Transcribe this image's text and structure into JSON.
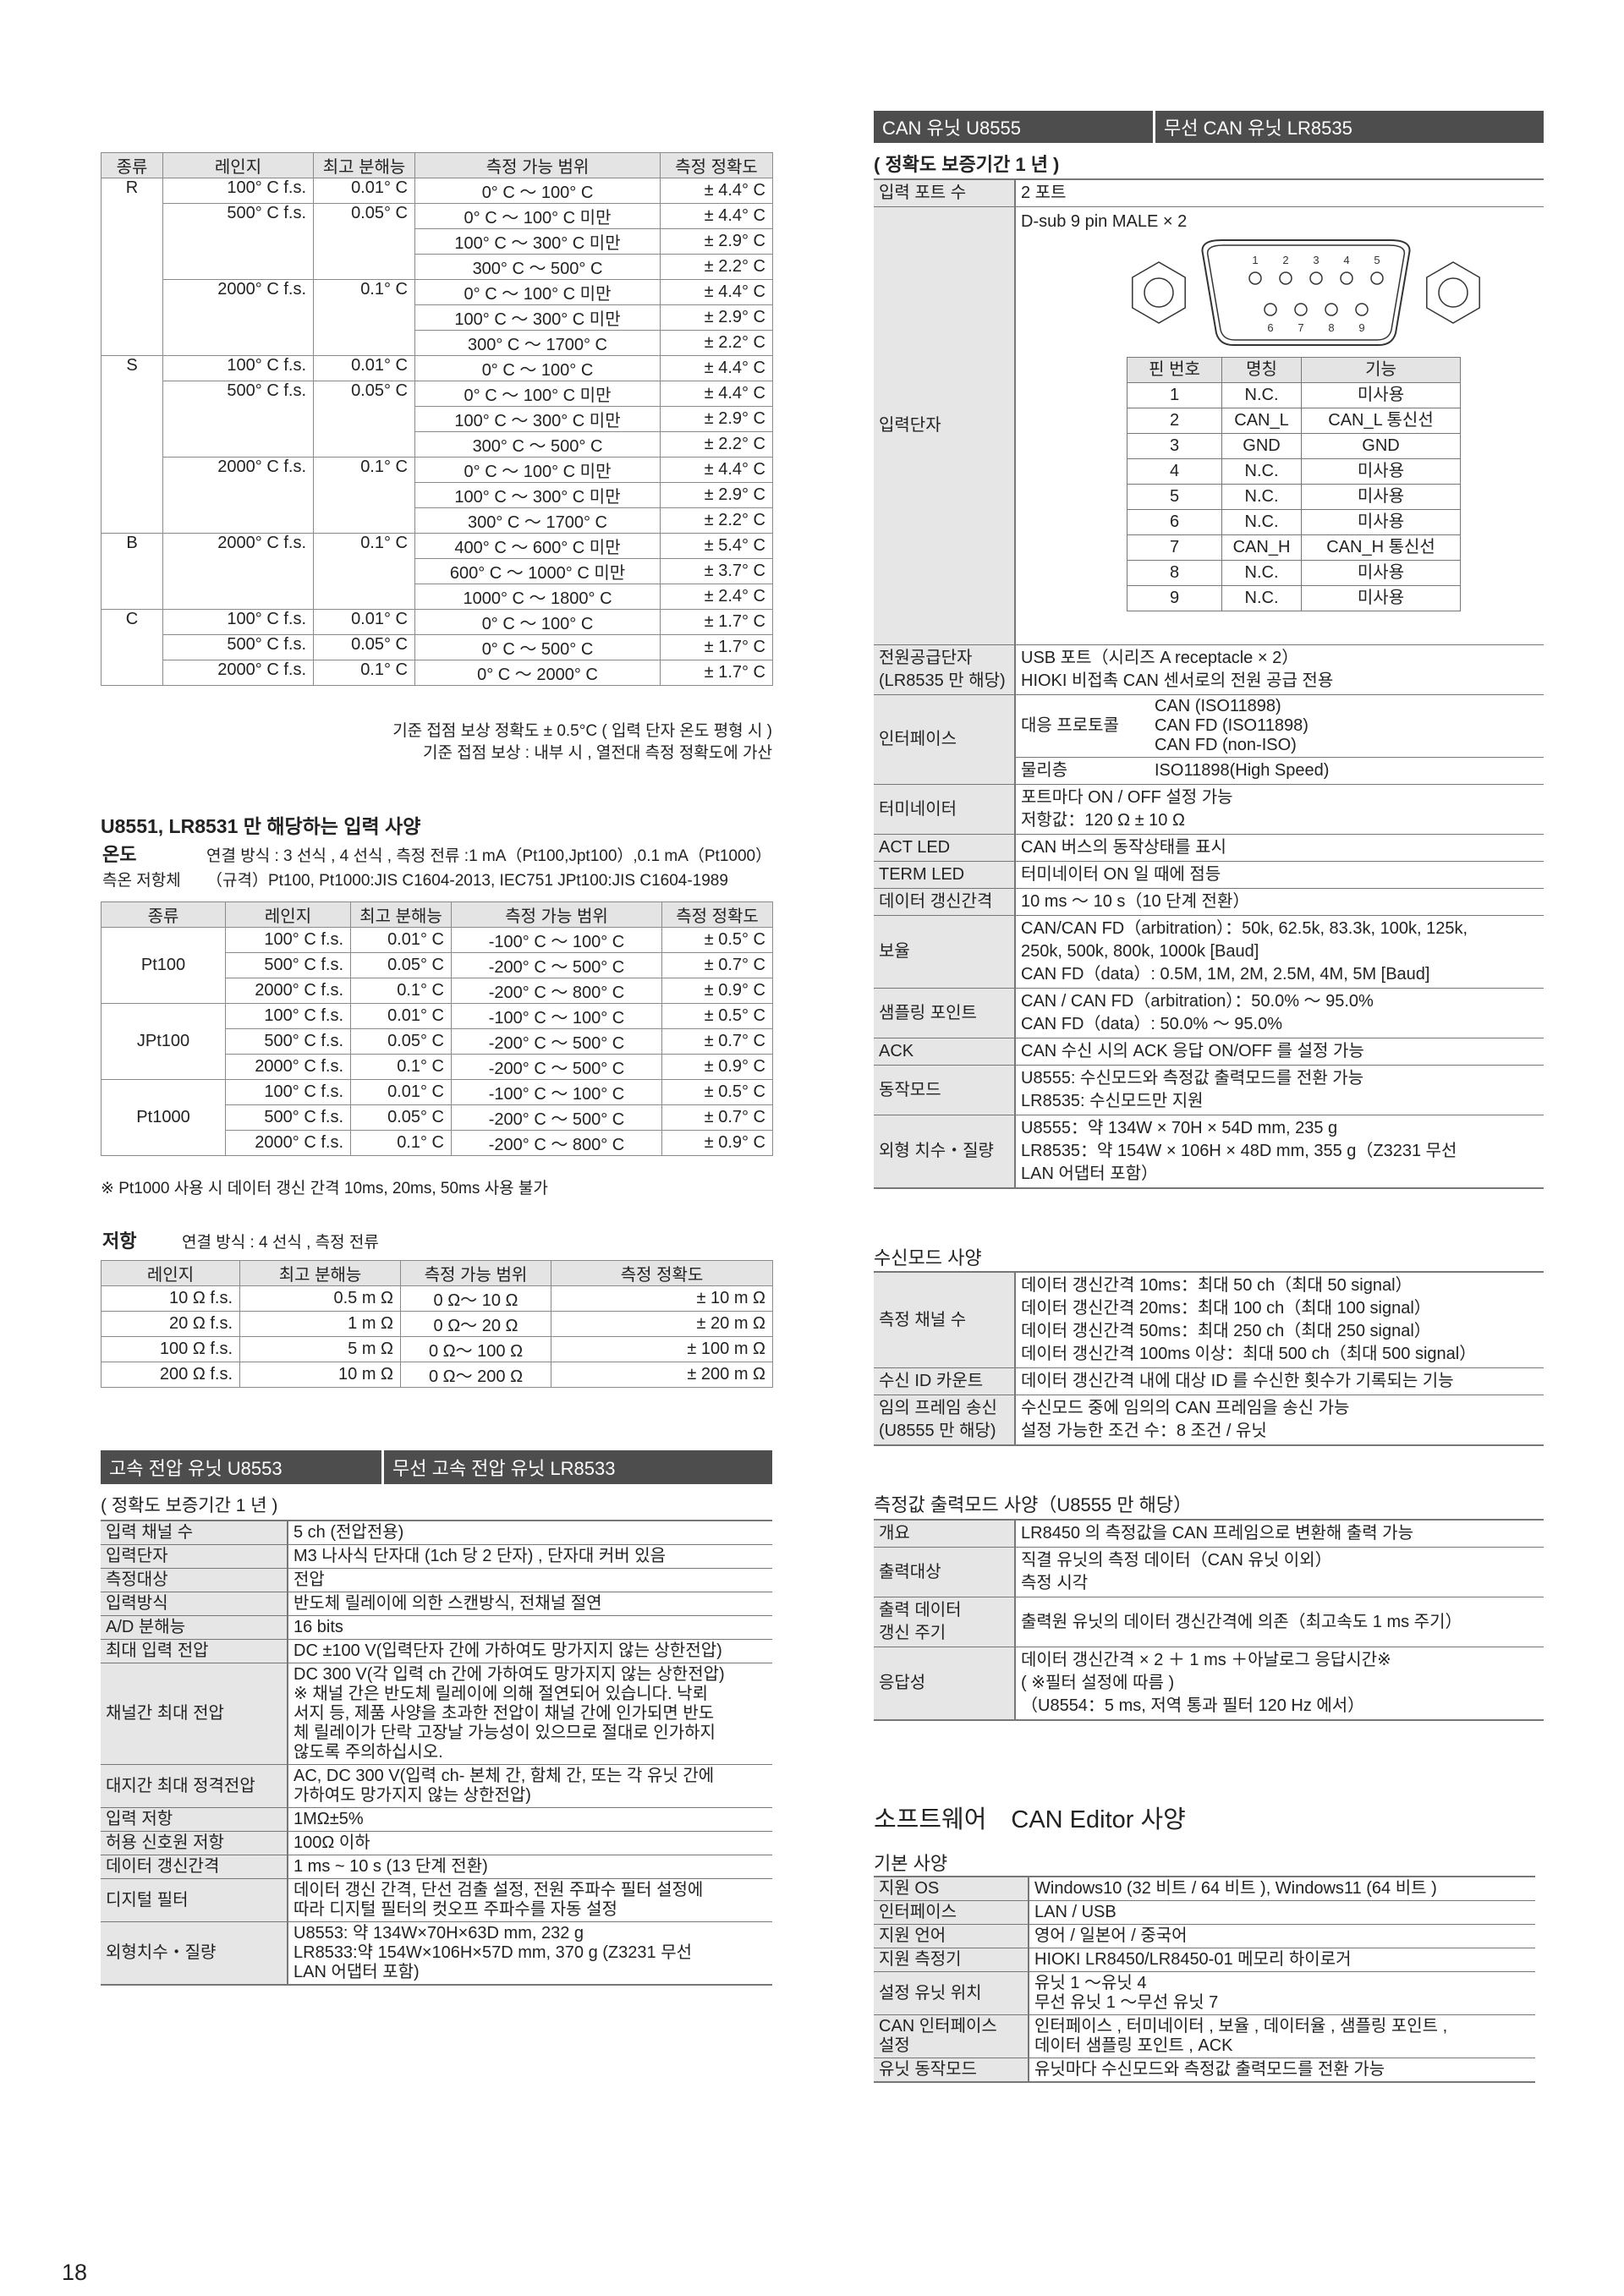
{
  "thermocouple": {
    "headers": [
      "종류",
      "레인지",
      "최고 분해능",
      "측정 가능 범위",
      "측정 정확도"
    ],
    "groups": [
      {
        "type": "R",
        "ranges": [
          {
            "range": "100° C f.s.",
            "resolution": "0.01° C",
            "rows": [
              [
                "0° C ～ 100° C",
                "± 4.4° C"
              ]
            ]
          },
          {
            "range": "500° C f.s.",
            "resolution": "0.05° C",
            "rows": [
              [
                "0° C ～ 100° C 미만",
                "± 4.4° C"
              ],
              [
                "100° C ～ 300° C 미만",
                "± 2.9° C"
              ],
              [
                "300° C ～ 500° C",
                "± 2.2° C"
              ]
            ]
          },
          {
            "range": "2000° C f.s.",
            "resolution": "0.1° C",
            "rows": [
              [
                "0° C ～ 100° C 미만",
                "± 4.4° C"
              ],
              [
                "100° C ～ 300° C 미만",
                "± 2.9° C"
              ],
              [
                "300° C ～ 1700° C",
                "± 2.2° C"
              ]
            ]
          }
        ]
      },
      {
        "type": "S",
        "ranges": [
          {
            "range": "100° C f.s.",
            "resolution": "0.01° C",
            "rows": [
              [
                "0° C ～ 100° C",
                "± 4.4° C"
              ]
            ]
          },
          {
            "range": "500° C f.s.",
            "resolution": "0.05° C",
            "rows": [
              [
                "0° C ～ 100° C 미만",
                "± 4.4° C"
              ],
              [
                "100° C ～ 300° C 미만",
                "± 2.9° C"
              ],
              [
                "300° C ～ 500° C",
                "± 2.2° C"
              ]
            ]
          },
          {
            "range": "2000° C f.s.",
            "resolution": "0.1° C",
            "rows": [
              [
                "0° C ～ 100° C 미만",
                "± 4.4° C"
              ],
              [
                "100° C ～ 300° C 미만",
                "± 2.9° C"
              ],
              [
                "300° C ～ 1700° C",
                "± 2.2° C"
              ]
            ]
          }
        ]
      },
      {
        "type": "B",
        "ranges": [
          {
            "range": "2000° C f.s.",
            "resolution": "0.1° C",
            "rows": [
              [
                "400° C ～ 600° C 미만",
                "± 5.4° C"
              ],
              [
                "600° C ～ 1000° C 미만",
                "± 3.7° C"
              ],
              [
                "1000° C ～ 1800° C",
                "± 2.4° C"
              ]
            ]
          }
        ]
      },
      {
        "type": "C",
        "ranges": [
          {
            "range": "100° C f.s.",
            "resolution": "0.01° C",
            "rows": [
              [
                "0° C ～ 100° C",
                "± 1.7° C"
              ]
            ]
          },
          {
            "range": "500° C f.s.",
            "resolution": "0.05° C",
            "rows": [
              [
                "0° C ～ 500° C",
                "± 1.7° C"
              ]
            ]
          },
          {
            "range": "2000° C f.s.",
            "resolution": "0.1° C",
            "rows": [
              [
                "0° C ～ 2000° C",
                "± 1.7° C"
              ]
            ]
          }
        ]
      }
    ],
    "notes": [
      "기준 접점 보상 정확도 ± 0.5°C ( 입력 단자 온도 평형 시 )",
      "기준 접점 보상 : 내부 시 , 열전대 측정 정확도에 가산"
    ]
  },
  "rtd": {
    "title": "U8551, LR8531 만 해당하는 입력 사양",
    "temp_label": "온도",
    "temp_desc": "연결 방식 : 3 선식 , 4 선식 , 측정 전류 :1 mA（Pt100,Jpt100）,0.1 mA（Pt1000）",
    "sensor_label": "측온 저항체",
    "sensor_desc": "（규격）Pt100, Pt1000:JIS C1604-2013, IEC751 JPt100:JIS C1604-1989",
    "headers": [
      "종류",
      "레인지",
      "최고 분해능",
      "측정 가능 범위",
      "측정 정확도"
    ],
    "groups": [
      {
        "type": "Pt100",
        "rows": [
          [
            "100° C f.s.",
            "0.01° C",
            "-100° C ～ 100° C",
            "± 0.5° C"
          ],
          [
            "500° C f.s.",
            "0.05° C",
            "-200° C ～ 500° C",
            "± 0.7° C"
          ],
          [
            "2000° C f.s.",
            "0.1° C",
            "-200° C ～ 800° C",
            "± 0.9° C"
          ]
        ]
      },
      {
        "type": "JPt100",
        "rows": [
          [
            "100° C f.s.",
            "0.01° C",
            "-100° C ～ 100° C",
            "± 0.5° C"
          ],
          [
            "500° C f.s.",
            "0.05° C",
            "-200° C ～ 500° C",
            "± 0.7° C"
          ],
          [
            "2000° C f.s.",
            "0.1° C",
            "-200° C ～ 500° C",
            "± 0.9° C"
          ]
        ]
      },
      {
        "type": "Pt1000",
        "rows": [
          [
            "100° C f.s.",
            "0.01° C",
            "-100° C ～ 100° C",
            "± 0.5° C"
          ],
          [
            "500° C f.s.",
            "0.05° C",
            "-200° C ～ 500° C",
            "± 0.7° C"
          ],
          [
            "2000° C f.s.",
            "0.1° C",
            "-200° C ～ 800° C",
            "± 0.9° C"
          ]
        ]
      }
    ],
    "note": "※ Pt1000 사용 시 데이터 갱신 간격 10ms, 20ms, 50ms 사용 불가"
  },
  "resistance": {
    "label": "저항",
    "desc": "연결 방식 : 4 선식 , 측정 전류",
    "headers": [
      "레인지",
      "최고 분해능",
      "측정 가능 범위",
      "측정 정확도"
    ],
    "rows": [
      [
        "10 Ω f.s.",
        "0.5 m Ω",
        "0 Ω～ 10 Ω",
        "± 10 m Ω"
      ],
      [
        "20 Ω f.s.",
        "1 m Ω",
        "0 Ω～ 20 Ω",
        "± 20 m Ω"
      ],
      [
        "100 Ω f.s.",
        "5 m Ω",
        "0 Ω～ 100 Ω",
        "± 100 m Ω"
      ],
      [
        "200 Ω f.s.",
        "10 m Ω",
        "0 Ω～ 200 Ω",
        "± 200 m Ω"
      ]
    ]
  },
  "u8553": {
    "header_left": "고속 전압 유닛 U8553",
    "header_right": "무선 고속 전압 유닛 LR8533",
    "warranty": "( 정확도 보증기간 1 년 )",
    "rows": [
      {
        "label": "입력 채널 수",
        "lines": [
          "5 ch (전압전용)"
        ]
      },
      {
        "label": "입력단자",
        "lines": [
          "M3 나사식 단자대 (1ch 당 2 단자) , 단자대 커버 있음"
        ]
      },
      {
        "label": "측정대상",
        "lines": [
          "전압"
        ]
      },
      {
        "label": "입력방식",
        "lines": [
          "반도체 릴레이에 의한 스캔방식, 전채널 절연"
        ]
      },
      {
        "label": "A/D 분해능",
        "lines": [
          "16 bits"
        ]
      },
      {
        "label": "최대 입력 전압",
        "lines": [
          "DC ±100 V(입력단자 간에 가하여도 망가지지 않는 상한전압)"
        ]
      },
      {
        "label": "채널간 최대 전압",
        "lines": [
          "DC 300 V(각 입력 ch 간에 가하여도 망가지지 않는 상한전압)",
          "※ 채널 간은 반도체 릴레이에 의해 절연되어 있습니다. 낙뢰",
          "서지 등, 제품 사양을 초과한 전압이 채널 간에 인가되면 반도",
          "체 릴레이가 단락 고장날 가능성이 있으므로 절대로 인가하지",
          "않도록 주의하십시오."
        ]
      },
      {
        "label": "대지간 최대 정격전압",
        "lines": [
          "AC, DC 300 V(입력 ch- 본체 간, 함체 간, 또는 각 유닛 간에",
          "가하여도 망가지지 않는 상한전압)"
        ]
      },
      {
        "label": "입력 저항",
        "lines": [
          "1MΩ±5%"
        ]
      },
      {
        "label": "허용 신호원 저항",
        "lines": [
          "100Ω 이하"
        ]
      },
      {
        "label": "데이터 갱신간격",
        "lines": [
          "1 ms  ~  10 s (13 단계 전환)"
        ]
      },
      {
        "label": "디지털 필터",
        "lines": [
          "데이터 갱신 간격, 단선 검출 설정, 전원 주파수 필터 설정에",
          "따라 디지털 필터의 컷오프 주파수를 자동 설정"
        ]
      },
      {
        "label": "외형치수・질량",
        "lines": [
          "U8553: 약 134W×70H×63D mm, 232 g",
          "LR8533:약 154W×106H×57D mm, 370 g (Z3231 무선",
          "LAN 어댑터 포함)"
        ]
      }
    ]
  },
  "can": {
    "header_left": "CAN 유닛 U8555",
    "header_right": "무선 CAN 유닛 LR8535",
    "warranty": "( 정확도 보증기간 1 년 )",
    "ports": {
      "label": "입력 포트 수",
      "value": "2 포트"
    },
    "terminal": {
      "label": "입력단자",
      "connector": "D-sub 9 pin MALE × 2",
      "pins_top": [
        "1",
        "2",
        "3",
        "4",
        "5"
      ],
      "pins_bottom": [
        "6",
        "7",
        "8",
        "9"
      ],
      "pin_headers": [
        "핀 번호",
        "명칭",
        "기능"
      ],
      "pin_rows": [
        [
          "1",
          "N.C.",
          "미사용"
        ],
        [
          "2",
          "CAN_L",
          "CAN_L 통신선"
        ],
        [
          "3",
          "GND",
          "GND"
        ],
        [
          "4",
          "N.C.",
          "미사용"
        ],
        [
          "5",
          "N.C.",
          "미사용"
        ],
        [
          "6",
          "N.C.",
          "미사용"
        ],
        [
          "7",
          "CAN_H",
          "CAN_H 통신선"
        ],
        [
          "8",
          "N.C.",
          "미사용"
        ],
        [
          "9",
          "N.C.",
          "미사용"
        ]
      ]
    },
    "power": {
      "label": [
        "전원공급단자",
        "(LR8535 만 해당)"
      ],
      "lines": [
        "USB 포트（시리즈 A receptacle × 2）",
        "HIOKI 비접촉 CAN 센서로의 전원 공급 전용"
      ]
    },
    "interface": {
      "label": "인터페이스",
      "protocol_label": "대응 프로토콜",
      "protocols": [
        "CAN (ISO11898)",
        "CAN FD (ISO11898)",
        "CAN FD (non-ISO)"
      ],
      "physical_label": "물리층",
      "physical": "ISO11898(High Speed)"
    },
    "rows": [
      {
        "label": "터미네이터",
        "lines": [
          "포트마다 ON / OFF 설정 가능",
          "저항값：120 Ω ± 10 Ω"
        ]
      },
      {
        "label": "ACT LED",
        "lines": [
          "CAN 버스의 동작상태를 표시"
        ]
      },
      {
        "label": "TERM LED",
        "lines": [
          "터미네이터 ON 일 때에 점등"
        ]
      },
      {
        "label": "데이터 갱신간격",
        "lines": [
          "10 ms ～ 10 s（10 단계 전환）"
        ]
      },
      {
        "label": "보율",
        "lines": [
          "CAN/CAN FD（arbitration）：50k, 62.5k, 83.3k, 100k, 125k,",
          "250k, 500k, 800k, 1000k [Baud]",
          "CAN FD（data）: 0.5M, 1M, 2M, 2.5M, 4M, 5M  [Baud]"
        ]
      },
      {
        "label": "샘플링 포인트",
        "lines": [
          "CAN / CAN FD（arbitration）：50.0% ～ 95.0%",
          "CAN FD（data）: 50.0% ～ 95.0%"
        ]
      },
      {
        "label": "ACK",
        "lines": [
          "CAN 수신 시의 ACK 응답  ON/OFF 를 설정 가능"
        ]
      },
      {
        "label": "동작모드",
        "lines": [
          "U8555: 수신모드와 측정값 출력모드를 전환 가능",
          "LR8535: 수신모드만 지원"
        ]
      },
      {
        "label": "외형 치수・질량",
        "lines": [
          "U8555：약 134W × 70H × 54D mm, 235 g",
          "LR8535：약 154W × 106H × 48D mm, 355 g（Z3231 무선",
          "LAN 어댑터 포함）"
        ]
      }
    ]
  },
  "receive_mode": {
    "title": "수신모드 사양",
    "rows": [
      {
        "label": "측정 채널 수",
        "lines": [
          "데이터 갱신간격 10ms：최대 50 ch（최대 50 signal）",
          "데이터 갱신간격 20ms：최대 100 ch（최대 100 signal）",
          "데이터 갱신간격 50ms：최대 250 ch（최대 250 signal）",
          "데이터 갱신간격 100ms 이상：최대 500 ch（최대 500 signal）"
        ]
      },
      {
        "label": "수신 ID 카운트",
        "lines": [
          "데이터 갱신간격 내에 대상 ID 를 수신한 횟수가 기록되는 기능"
        ]
      },
      {
        "label": "임의 프레임 송신\n(U8555 만 해당)",
        "lines": [
          "수신모드 중에 임의의 CAN 프레임을 송신 가능",
          "설정 가능한 조건 수：8 조건 / 유닛"
        ]
      }
    ]
  },
  "output_mode": {
    "title": "측정값 출력모드 사양（U8555 만 해당）",
    "rows": [
      {
        "label": "개요",
        "lines": [
          "LR8450 의 측정값을 CAN 프레임으로 변환해 출력 가능"
        ]
      },
      {
        "label": "출력대상",
        "lines": [
          "직결 유닛의 측정 데이터（CAN 유닛 이외）",
          "측정 시각"
        ]
      },
      {
        "label": "출력 데이터\n갱신 주기",
        "lines": [
          "출력원 유닛의 데이터 갱신간격에 의존（최고속도 1 ms 주기）"
        ]
      },
      {
        "label": "응답성",
        "lines": [
          "데이터 갱신간격 × 2 ＋ 1 ms ＋아날로그 응답시간※",
          "( ※필터 설정에 따름 )",
          "（U8554：5 ms, 저역 통과 필터 120 Hz 에서）"
        ]
      }
    ]
  },
  "software": {
    "title": "소프트웨어　CAN Editor 사양",
    "basic_title": "기본 사양",
    "rows": [
      {
        "label": "지원 OS",
        "lines": [
          "Windows10 (32 비트 / 64 비트 ), Windows11 (64 비트 )"
        ]
      },
      {
        "label": "인터페이스",
        "lines": [
          "LAN / USB"
        ]
      },
      {
        "label": "지원 언어",
        "lines": [
          "영어 / 일본어 / 중국어"
        ]
      },
      {
        "label": "지원 측정기",
        "lines": [
          "HIOKI LR8450/LR8450-01 메모리 하이로거"
        ]
      },
      {
        "label": "설정 유닛 위치",
        "lines": [
          "유닛 1 ～유닛 4",
          "무선 유닛 1 ～무선 유닛 7"
        ]
      },
      {
        "label": "CAN 인터페이스\n설정",
        "lines": [
          "인터페이스 , 터미네이터 , 보율 , 데이터율 , 샘플링 포인트 ,",
          "데이터 샘플링 포인트 , ACK"
        ]
      },
      {
        "label": "유닛 동작모드",
        "lines": [
          "유닛마다 수신모드와 측정값 출력모드를 전환 가능"
        ]
      }
    ]
  },
  "page_number": "18",
  "colors": {
    "header_bar": "#4d4d4d",
    "label_bg": "#e6e6e6",
    "border": "#777777"
  }
}
